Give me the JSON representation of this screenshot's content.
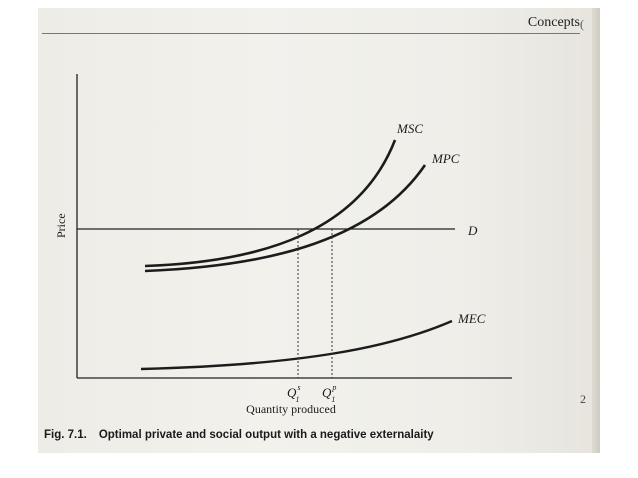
{
  "header": {
    "running_head": "Concepts",
    "margin_marks": [
      "(",
      "2"
    ]
  },
  "figure": {
    "y_axis_label": "Price",
    "x_axis_label": "Quantity produced",
    "curves": {
      "msc": "MSC",
      "mpc": "MPC",
      "demand": "D",
      "mec": "MEC"
    },
    "q_social": {
      "base": "Q",
      "sub": "1",
      "sup": "s"
    },
    "q_private": {
      "base": "Q",
      "sub": "1",
      "sup": "p"
    }
  },
  "caption": {
    "number": "Fig. 7.1.",
    "text": "Optimal private and social output with a negative externalaity"
  }
}
